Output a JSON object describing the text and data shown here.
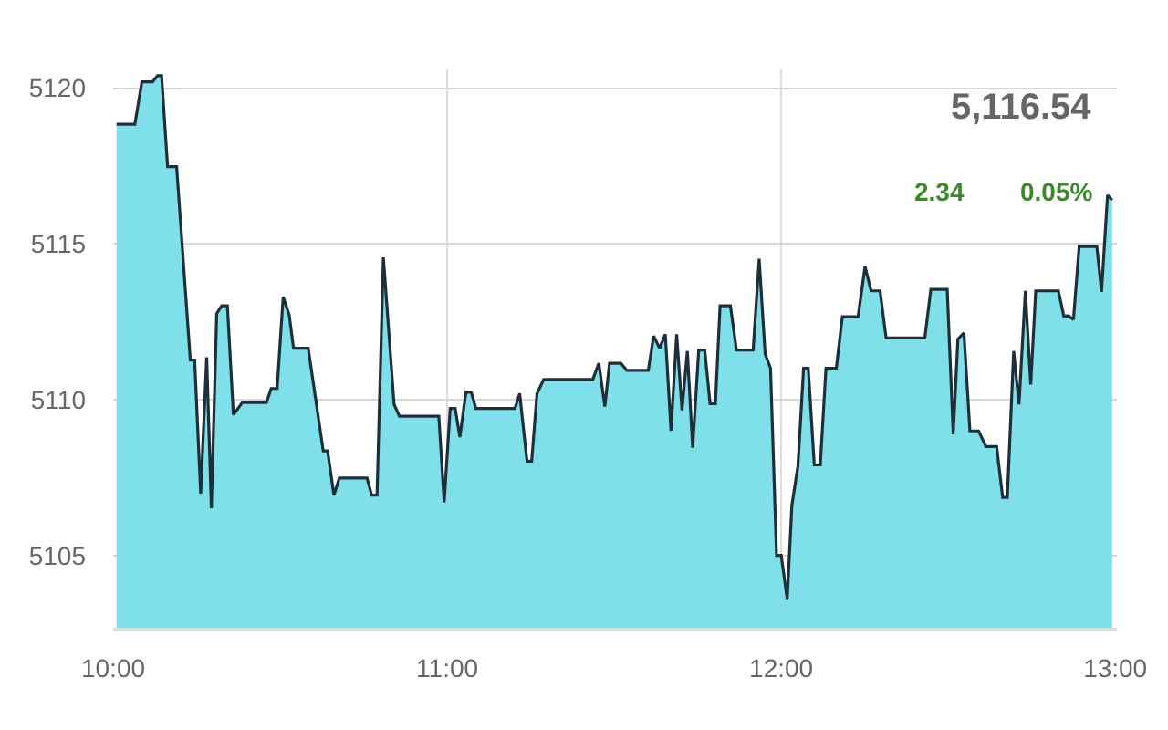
{
  "chart_data": {
    "type": "area",
    "x": [
      10.01,
      10.065,
      10.086,
      10.118,
      10.133,
      10.145,
      10.163,
      10.19,
      10.231,
      10.244,
      10.262,
      10.28,
      10.294,
      10.31,
      10.325,
      10.342,
      10.36,
      10.387,
      10.459,
      10.473,
      10.491,
      10.509,
      10.527,
      10.54,
      10.584,
      10.629,
      10.642,
      10.661,
      10.677,
      10.76,
      10.774,
      10.79,
      10.809,
      10.841,
      10.857,
      10.975,
      10.991,
      11.009,
      11.024,
      11.038,
      11.056,
      11.072,
      11.086,
      11.203,
      11.217,
      11.239,
      11.253,
      11.269,
      11.289,
      11.436,
      11.454,
      11.472,
      11.486,
      11.52,
      11.538,
      11.602,
      11.618,
      11.636,
      11.653,
      11.67,
      11.687,
      11.703,
      11.719,
      11.735,
      11.753,
      11.771,
      11.787,
      11.803,
      11.817,
      11.848,
      11.866,
      11.916,
      11.934,
      11.952,
      11.968,
      11.986,
      12.0,
      12.018,
      12.032,
      12.05,
      12.067,
      12.081,
      12.099,
      12.117,
      12.134,
      12.165,
      12.183,
      12.23,
      12.251,
      12.269,
      12.296,
      12.314,
      12.43,
      12.448,
      12.497,
      12.515,
      12.529,
      12.547,
      12.565,
      12.591,
      12.613,
      12.645,
      12.663,
      12.677,
      12.696,
      12.712,
      12.731,
      12.747,
      12.762,
      12.83,
      12.846,
      12.86,
      12.875,
      12.892,
      12.945,
      12.959,
      12.977,
      12.991
    ],
    "series": [
      {
        "color": "#7fe0ea",
        "values": [
          5118.84,
          5118.84,
          5120.2,
          5120.2,
          5120.4,
          5120.4,
          5117.48,
          5117.48,
          5111.28,
          5111.28,
          5107.0,
          5111.37,
          5106.53,
          5112.77,
          5113.02,
          5113.02,
          5109.53,
          5109.92,
          5109.92,
          5110.37,
          5110.37,
          5113.31,
          5112.73,
          5111.66,
          5111.66,
          5108.37,
          5108.37,
          5106.95,
          5107.5,
          5107.5,
          5106.95,
          5106.95,
          5114.57,
          5109.86,
          5109.48,
          5109.48,
          5106.72,
          5109.73,
          5109.73,
          5108.81,
          5110.25,
          5110.25,
          5109.73,
          5109.73,
          5110.21,
          5108.04,
          5108.04,
          5110.21,
          5110.66,
          5110.66,
          5111.18,
          5109.79,
          5111.18,
          5111.18,
          5110.95,
          5110.95,
          5112.05,
          5111.66,
          5112.11,
          5109.01,
          5112.11,
          5109.67,
          5111.57,
          5108.47,
          5111.6,
          5111.6,
          5109.88,
          5109.88,
          5113.02,
          5113.02,
          5111.6,
          5111.6,
          5114.53,
          5111.47,
          5111.02,
          5105.02,
          5105.02,
          5103.62,
          5106.63,
          5107.88,
          5111.02,
          5111.02,
          5107.92,
          5107.92,
          5111.02,
          5111.02,
          5112.67,
          5112.67,
          5114.28,
          5113.5,
          5113.5,
          5111.99,
          5111.99,
          5113.55,
          5113.55,
          5108.9,
          5111.95,
          5112.15,
          5109.01,
          5109.01,
          5108.51,
          5108.51,
          5106.88,
          5106.88,
          5111.57,
          5109.86,
          5113.5,
          5110.5,
          5113.5,
          5113.5,
          5112.69,
          5112.7,
          5112.58,
          5114.92,
          5114.92,
          5113.47,
          5116.57,
          5116.41
        ]
      }
    ],
    "xlim": [
      10,
      13.005
    ],
    "xticks": [
      {
        "value": 10,
        "label": "10:00"
      },
      {
        "value": 11,
        "label": "11:00"
      },
      {
        "value": 12,
        "label": "12:00"
      },
      {
        "value": 13,
        "label": "13:00"
      }
    ],
    "ylim": [
      5102.7,
      5120.6
    ],
    "yticks": [
      5105,
      5110,
      5115,
      5120
    ],
    "grid": true,
    "line_style": "solid",
    "marker": "none",
    "annotations": [
      "5,116.54",
      "2.34",
      "0.05%"
    ]
  }
}
